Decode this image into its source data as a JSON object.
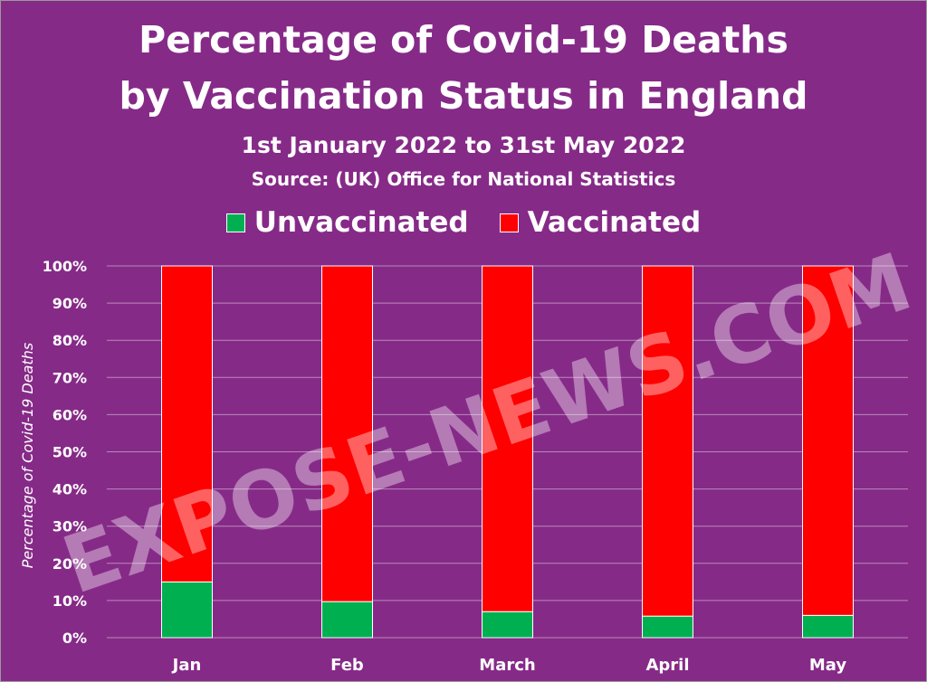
{
  "chart_data": {
    "type": "bar",
    "stacked": true,
    "title_line1": "Percentage of Covid-19 Deaths",
    "title_line2": "by Vaccination Status in England",
    "subtitle": "1st January 2022 to 31st May 2022",
    "source": "Source:  (UK) Office for National Statistics",
    "ylabel": "Percentage of Covid-19 Deaths",
    "xlabel": "",
    "categories": [
      "Jan",
      "Feb",
      "March",
      "April",
      "May"
    ],
    "series": [
      {
        "name": "Unvaccinated",
        "color": "#00b050",
        "values": [
          15,
          9.7,
          7,
          5.8,
          6
        ]
      },
      {
        "name": "Vaccinated",
        "color": "#ff0000",
        "values": [
          85,
          90.3,
          93,
          94.2,
          94
        ]
      }
    ],
    "ylim": [
      0,
      100
    ],
    "yticks": [
      "0%",
      "10%",
      "20%",
      "30%",
      "40%",
      "50%",
      "60%",
      "70%",
      "80%",
      "90%",
      "100%"
    ],
    "grid": true,
    "legend_position": "top-center",
    "watermark": "EXPOSE-NEWS.COM"
  }
}
